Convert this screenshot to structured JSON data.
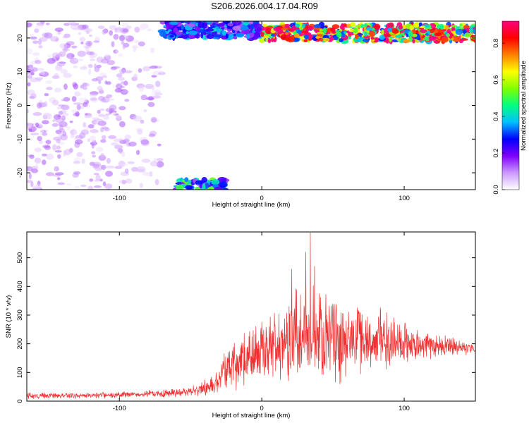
{
  "title": "S206.2026.004.17.04.R09",
  "chart_data": [
    {
      "type": "heatmap",
      "xlabel": "Height of straight line (km)",
      "ylabel": "Frequency (Hz)",
      "xlim": [
        -165,
        150
      ],
      "ylim": [
        -25,
        25
      ],
      "x_ticks": [
        -100,
        0,
        100
      ],
      "y_ticks": [
        20,
        10,
        0,
        -10,
        -20
      ],
      "colorbar": {
        "label": "Normalized spectral amplitude",
        "range": [
          0,
          0.92
        ],
        "ticks": [
          0.0,
          0.2,
          0.4,
          0.6,
          0.8
        ],
        "colors": [
          "#ffffff",
          "#cc99ff",
          "#8000ff",
          "#0000ff",
          "#00bfff",
          "#00ff80",
          "#80ff00",
          "#ffff00",
          "#ff8000",
          "#ff0000",
          "#ff0080"
        ]
      },
      "regions": [
        {
          "x_range": [
            -165,
            -70
          ],
          "y_range": [
            -25,
            25
          ],
          "amplitude": 0.08,
          "note": "scattered low-level energy"
        },
        {
          "x_range": [
            -60,
            -25
          ],
          "y_range": [
            -25,
            -22
          ],
          "amplitude": 0.45
        },
        {
          "x_range": [
            -70,
            0
          ],
          "y_range": [
            20,
            25
          ],
          "amplitude": 0.35
        },
        {
          "x_range": [
            0,
            150
          ],
          "y_range": [
            19,
            24
          ],
          "amplitude": 0.9,
          "note": "narrow band near 21 Hz"
        }
      ]
    },
    {
      "type": "line",
      "xlabel": "Height of straight line (km)",
      "ylabel": "SNR (10 * v/v)",
      "xlim": [
        -165,
        150
      ],
      "ylim": [
        0,
        590
      ],
      "x_ticks": [
        -100,
        0,
        100
      ],
      "y_ticks": [
        0,
        100,
        200,
        300,
        400,
        500
      ],
      "color": "#ef3030",
      "envelope": {
        "x": [
          -165,
          -120,
          -80,
          -60,
          -45,
          -35,
          -25,
          -10,
          0,
          10,
          20,
          30,
          40,
          60,
          80,
          100,
          120,
          150
        ],
        "mean": [
          18,
          20,
          25,
          30,
          38,
          55,
          110,
          150,
          170,
          195,
          210,
          225,
          230,
          225,
          215,
          205,
          195,
          185
        ],
        "spread": [
          10,
          10,
          12,
          14,
          18,
          30,
          70,
          90,
          110,
          130,
          150,
          170,
          160,
          140,
          110,
          70,
          40,
          20
        ]
      },
      "peaks": [
        {
          "x": 34,
          "y": 587
        },
        {
          "x": 31,
          "y": 520
        },
        {
          "x": 21,
          "y": 460
        },
        {
          "x": 37,
          "y": 470
        }
      ]
    }
  ]
}
